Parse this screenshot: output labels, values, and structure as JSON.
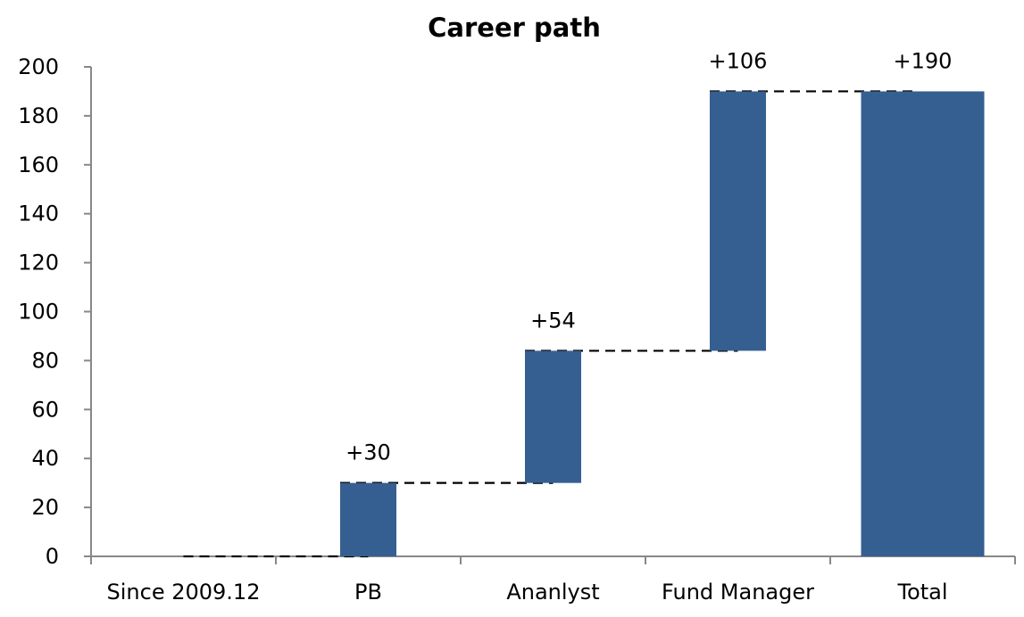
{
  "chart_data": {
    "type": "bar",
    "subtype": "waterfall",
    "title": "Career path",
    "xlabel": "",
    "ylabel": "",
    "categories": [
      "Since 2009.12",
      "PB",
      "Ananlyst",
      "Fund Manager",
      "Total"
    ],
    "base": [
      0,
      0,
      30,
      84,
      0
    ],
    "values": [
      0,
      30,
      54,
      106,
      190
    ],
    "data_labels": [
      "",
      "+30",
      "+54",
      "+106",
      "+190"
    ],
    "ylim": [
      0,
      200
    ],
    "yticks": [
      "0",
      "20",
      "40",
      "60",
      "80",
      "100",
      "120",
      "140",
      "160",
      "180",
      "200"
    ],
    "bar_color": "#365F91",
    "connectors": "dashed",
    "grid": false,
    "legend": "none"
  }
}
